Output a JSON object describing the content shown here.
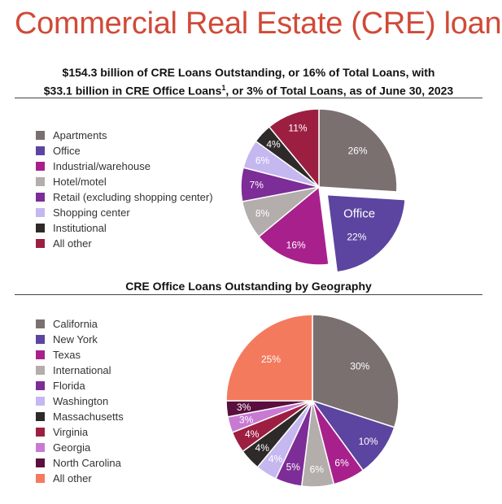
{
  "page": {
    "title": "Commercial Real Estate (CRE) loans",
    "chart1_subtitle_line1": "$154.3 billion of CRE Loans Outstanding, or 16% of Total Loans, with",
    "chart1_subtitle_line2": "$33.1 billion in CRE Office Loans",
    "chart1_subtitle_sup": "1",
    "chart1_subtitle_line2_end": ", or 3% of Total Loans, as of June 30, 2023",
    "chart2_title": "CRE Office Loans Outstanding by Geography"
  },
  "chart_data": [
    {
      "type": "pie",
      "title": "$154.3 billion of CRE Loans Outstanding, or 16% of Total Loans, with $33.1 billion in CRE Office Loans1, or 3% of Total Loans, as of June 30, 2023",
      "legend_position": "left",
      "exploded_slice": "Office",
      "slices": [
        {
          "label": "Apartments",
          "value": 26,
          "color": "#7a7070"
        },
        {
          "label": "Office",
          "value": 22,
          "color": "#5c45a0",
          "callout": "Office"
        },
        {
          "label": "Industrial/warehouse",
          "value": 16,
          "color": "#a8208c"
        },
        {
          "label": "Hotel/motel",
          "value": 8,
          "color": "#b3adab"
        },
        {
          "label": "Retail (excluding shopping center)",
          "value": 7,
          "color": "#7d2d97"
        },
        {
          "label": "Shopping center",
          "value": 6,
          "color": "#c5b7ef"
        },
        {
          "label": "Institutional",
          "value": 4,
          "color": "#2e2a2a"
        },
        {
          "label": "All other",
          "value": 11,
          "color": "#9c1f42"
        }
      ]
    },
    {
      "type": "pie",
      "title": "CRE Office Loans Outstanding by Geography",
      "legend_position": "left",
      "slices": [
        {
          "label": "California",
          "value": 30,
          "color": "#7a7070"
        },
        {
          "label": "New York",
          "value": 10,
          "color": "#5c45a0"
        },
        {
          "label": "Texas",
          "value": 6,
          "color": "#a8208c"
        },
        {
          "label": "International",
          "value": 6,
          "color": "#b3adab"
        },
        {
          "label": "Florida",
          "value": 5,
          "color": "#7d2d97"
        },
        {
          "label": "Washington",
          "value": 4,
          "color": "#c5b7ef"
        },
        {
          "label": "Massachusetts",
          "value": 4,
          "color": "#2e2a2a"
        },
        {
          "label": "Virginia",
          "value": 4,
          "color": "#9c1f42"
        },
        {
          "label": "Georgia",
          "value": 3,
          "color": "#c87ad3"
        },
        {
          "label": "North Carolina",
          "value": 3,
          "color": "#5a0f3e"
        },
        {
          "label": "All other",
          "value": 25,
          "color": "#f47a5e"
        }
      ]
    }
  ]
}
